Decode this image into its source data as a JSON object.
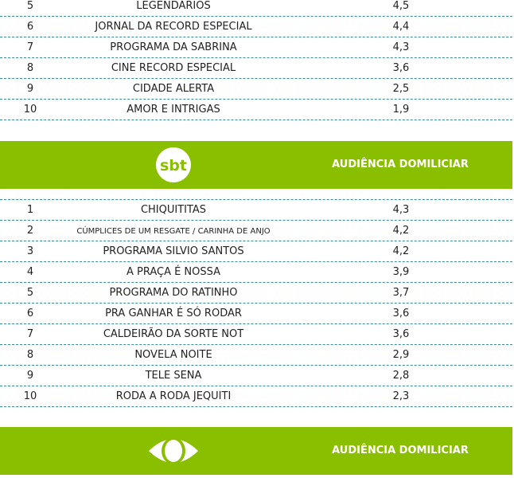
{
  "record_table": {
    "rows": [
      {
        "rank": "5",
        "program": "LEGENDÁRIOS",
        "rating": "4,5"
      },
      {
        "rank": "6",
        "program": "JORNAL DA RECORD ESPECIAL",
        "rating": "4,4"
      },
      {
        "rank": "7",
        "program": "PROGRAMA DA SABRINA",
        "rating": "4,3"
      },
      {
        "rank": "8",
        "program": "CINE RECORD ESPECIAL",
        "rating": "3,6"
      },
      {
        "rank": "9",
        "program": "CIDADE ALERTA",
        "rating": "2,5"
      },
      {
        "rank": "10",
        "program": "AMOR E INTRIGAS",
        "rating": "1,9"
      }
    ]
  },
  "sbt_banner": {
    "logo_text": "sbt",
    "title": "AUDIÊNCIA DOMILICIAR",
    "color": "#8abf00"
  },
  "sbt_table": {
    "rows": [
      {
        "rank": "1",
        "program": "CHIQUITITAS",
        "rating": "4,3"
      },
      {
        "rank": "2",
        "program": "CÚMPLICES DE UM RESGATE / CARINHA DE ANJO",
        "rating": "4,2"
      },
      {
        "rank": "3",
        "program": "PROGRAMA SILVIO SANTOS",
        "rating": "4,2"
      },
      {
        "rank": "4",
        "program": "A PRAÇA É NOSSA",
        "rating": "3,9"
      },
      {
        "rank": "5",
        "program": "PROGRAMA DO RATINHO",
        "rating": "3,7"
      },
      {
        "rank": "6",
        "program": "PRA GANHAR É SÓ RODAR",
        "rating": "3,6"
      },
      {
        "rank": "7",
        "program": "CALDEIRÃO DA SORTE NOT",
        "rating": "3,6"
      },
      {
        "rank": "8",
        "program": "NOVELA NOITE",
        "rating": "2,9"
      },
      {
        "rank": "9",
        "program": "TELE SENA",
        "rating": "2,8"
      },
      {
        "rank": "10",
        "program": "RODA A RODA JEQUITI",
        "rating": "2,3"
      }
    ]
  },
  "band_banner": {
    "logo": "band-eye-icon",
    "title": "AUDIÊNCIA DOMILICIAR"
  }
}
